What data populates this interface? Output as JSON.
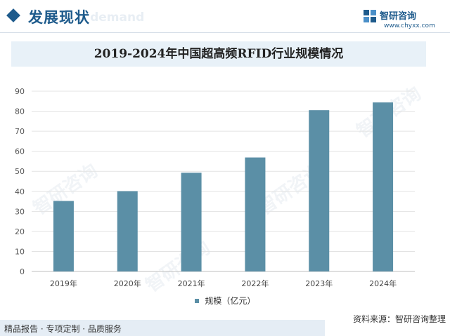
{
  "header": {
    "section_title": "发展现状",
    "section_ghost": "d demand",
    "brand_name": "智研咨询",
    "brand_url": "www.chyxx.com"
  },
  "colors": {
    "bar": "#5b8fa6",
    "accent": "#1e5b8c"
  },
  "watermark": "智研咨询",
  "chart_data": {
    "type": "bar",
    "title": "2019-2024年中国超高频RFID行业规模情况",
    "categories": [
      "2019年",
      "2020年",
      "2021年",
      "2022年",
      "2023年",
      "2024年"
    ],
    "series": [
      {
        "name": "规模（亿元）",
        "values": [
          35.2,
          40.1,
          49.3,
          56.9,
          80.5,
          84.4
        ]
      }
    ],
    "ylim": [
      0,
      90
    ],
    "yticks": [
      0,
      10,
      20,
      30,
      40,
      50,
      60,
      70,
      80,
      90
    ],
    "grid": true,
    "legend": "bottom"
  },
  "source": "资料来源：智研咨询整理",
  "footer": "精品报告 · 专项定制 · 品质服务"
}
